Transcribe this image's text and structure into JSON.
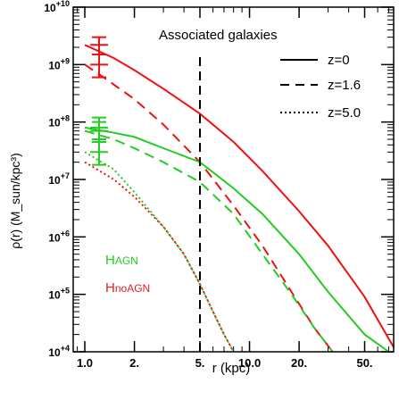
{
  "chart_data": {
    "type": "line",
    "title": "",
    "annotation_title": "Associated galaxies",
    "xlabel": "r (kpc)",
    "ylabel": "ρ(r) (M_sun/kpc³)",
    "x_scale": "log",
    "y_scale": "log",
    "xlim": [
      0.85,
      75
    ],
    "ylim": [
      10000,
      10000000000
    ],
    "x_ticks": [
      {
        "value": 1,
        "label": "1.0"
      },
      {
        "value": 2,
        "label": "2."
      },
      {
        "value": 5,
        "label": "5."
      },
      {
        "value": 10,
        "label": "10.0"
      },
      {
        "value": 20,
        "label": "20."
      },
      {
        "value": 50,
        "label": "50."
      }
    ],
    "y_ticks": [
      {
        "value": 10000,
        "label": "10+4"
      },
      {
        "value": 100000,
        "label": "10+5"
      },
      {
        "value": 1000000,
        "label": "10+6"
      },
      {
        "value": 10000000,
        "label": "10+7"
      },
      {
        "value": 100000000,
        "label": "10+8"
      },
      {
        "value": 1000000000,
        "label": "10+9"
      },
      {
        "value": 10000000000,
        "label": "10+10"
      }
    ],
    "vertical_line_x": 5,
    "legend": [
      {
        "label": "z=0",
        "style": "solid"
      },
      {
        "label": "z=1.6",
        "style": "dashed"
      },
      {
        "label": "z=5.0",
        "style": "dotted"
      }
    ],
    "series_labels": [
      {
        "main": "H",
        "sub": "AGN",
        "color": "#22cc22"
      },
      {
        "main": "H",
        "sub": "noAGN",
        "color": "#dd2222"
      }
    ],
    "series": [
      {
        "model": "noAGN",
        "z": "0",
        "color": "#ee1111",
        "style": "solid",
        "x": [
          1,
          1.5,
          2,
          3,
          5,
          8,
          12,
          20,
          30,
          50,
          75
        ],
        "y": [
          2200000000,
          1300000000,
          800000000,
          380000000,
          140000000,
          45000000,
          14000000,
          2800000,
          700000,
          90000,
          12000
        ]
      },
      {
        "model": "noAGN",
        "z": "1.6",
        "color": "#ee1111",
        "style": "dashed",
        "x": [
          1,
          1.3,
          2,
          3,
          5,
          8,
          12,
          18,
          25,
          32
        ],
        "y": [
          1000000000,
          600000000,
          250000000,
          90000000,
          20000000,
          3500000,
          700000,
          110000,
          25000,
          10000
        ]
      },
      {
        "model": "noAGN",
        "z": "5.0",
        "color": "#ee1111",
        "style": "dotted",
        "x": [
          1,
          1.5,
          2,
          3,
          4,
          5,
          6,
          7,
          8
        ],
        "y": [
          20000000,
          10000000,
          5000000,
          1500000,
          500000,
          150000,
          50000,
          20000,
          10000
        ]
      },
      {
        "model": "AGN",
        "z": "0",
        "color": "#22cc22",
        "style": "solid",
        "x": [
          1,
          1.5,
          2,
          3,
          5,
          8,
          12,
          20,
          30,
          50,
          70
        ],
        "y": [
          80000000,
          65000000,
          55000000,
          35000000,
          20000000,
          7000000,
          2500000,
          500000,
          110000,
          20000,
          10000
        ]
      },
      {
        "model": "AGN",
        "z": "1.6",
        "color": "#22cc22",
        "style": "dashed",
        "x": [
          1,
          1.5,
          2,
          3,
          5,
          8,
          12,
          18,
          25,
          32
        ],
        "y": [
          70000000,
          50000000,
          35000000,
          20000000,
          9000000,
          2500000,
          500000,
          100000,
          25000,
          10000
        ]
      },
      {
        "model": "AGN",
        "z": "5.0",
        "color": "#22cc22",
        "style": "dotted",
        "x": [
          1,
          1.5,
          2,
          3,
          4,
          5,
          6,
          7,
          8
        ],
        "y": [
          30000000,
          15000000,
          6000000,
          1500000,
          500000,
          150000,
          50000,
          20000,
          10000
        ]
      }
    ],
    "error_bars": [
      {
        "color": "#ee1111",
        "x": 1,
        "y": 2200000000,
        "low": 1500000000,
        "high": 3000000000
      },
      {
        "color": "#ee1111",
        "x": 1,
        "y": 1000000000,
        "low": 600000000,
        "high": 1500000000
      },
      {
        "color": "#22cc22",
        "x": 1,
        "y": 80000000,
        "low": 50000000,
        "high": 120000000
      },
      {
        "color": "#22cc22",
        "x": 1,
        "y": 70000000,
        "low": 45000000,
        "high": 100000000
      },
      {
        "color": "#22cc22",
        "x": 1,
        "y": 30000000,
        "low": 18000000,
        "high": 45000000
      }
    ]
  }
}
